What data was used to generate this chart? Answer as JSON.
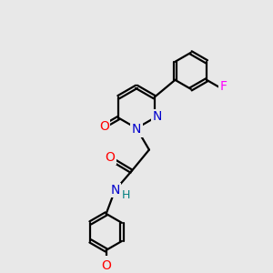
{
  "background_color": "#e8e8e8",
  "bond_color": "#000000",
  "bond_width": 1.6,
  "atom_colors": {
    "N": "#0000cc",
    "O": "#ff0000",
    "F": "#ff00ff",
    "H": "#008080",
    "C": "#000000"
  },
  "font_size": 10,
  "fig_size": [
    3.0,
    3.0
  ],
  "dpi": 100
}
